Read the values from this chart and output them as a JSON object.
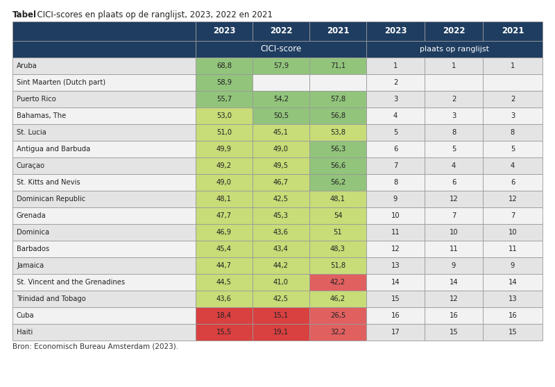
{
  "title_bold": "Tabel",
  "title_rest": "  CICI-scores en plaats op de ranglijst, 2023, 2022 en 2021",
  "footer": "Bron: Economisch Bureau Amsterdam (2023).",
  "countries": [
    "Aruba",
    "Sint Maarten (Dutch part)",
    "Puerto Rico",
    "Bahamas, The",
    "St. Lucia",
    "Antigua and Barbuda",
    "Curaçao",
    "St. Kitts and Nevis",
    "Dominican Republic",
    "Grenada",
    "Dominica",
    "Barbados",
    "Jamaica",
    "St. Vincent and the Grenadines",
    "Trinidad and Tobago",
    "Cuba",
    "Haiti"
  ],
  "cici_2023": [
    68.8,
    58.9,
    55.7,
    53.0,
    51.0,
    49.9,
    49.2,
    49.0,
    48.1,
    47.7,
    46.9,
    45.4,
    44.7,
    44.5,
    43.6,
    18.4,
    15.5
  ],
  "cici_2022": [
    57.9,
    null,
    54.2,
    50.5,
    45.1,
    49.0,
    49.5,
    46.7,
    42.5,
    45.3,
    43.6,
    43.4,
    44.2,
    41.0,
    42.5,
    15.1,
    19.1
  ],
  "cici_2021": [
    71.1,
    null,
    57.8,
    56.8,
    53.8,
    56.3,
    56.6,
    56.2,
    48.1,
    54.0,
    51.0,
    48.3,
    51.8,
    42.2,
    46.2,
    26.5,
    32.2
  ],
  "rank_2023": [
    1,
    2,
    3,
    4,
    5,
    6,
    7,
    8,
    9,
    10,
    11,
    12,
    13,
    14,
    15,
    16,
    17
  ],
  "rank_2022": [
    1,
    null,
    2,
    3,
    8,
    5,
    4,
    6,
    12,
    7,
    10,
    11,
    9,
    14,
    12,
    16,
    15
  ],
  "rank_2021": [
    1,
    null,
    2,
    3,
    8,
    5,
    4,
    6,
    12,
    7,
    10,
    11,
    9,
    14,
    13,
    16,
    15
  ],
  "header_bg": "#1f3d60",
  "header_fg": "#ffffff",
  "row_bg_odd": "#e4e4e4",
  "row_bg_even": "#f2f2f2",
  "border_color": "#999999",
  "green_high": "#92c47c",
  "green_mid": "#b6d67a",
  "yellow": "#d4e87a",
  "orange": "#e6b655",
  "red": "#e06060",
  "red_dark": "#d94040"
}
